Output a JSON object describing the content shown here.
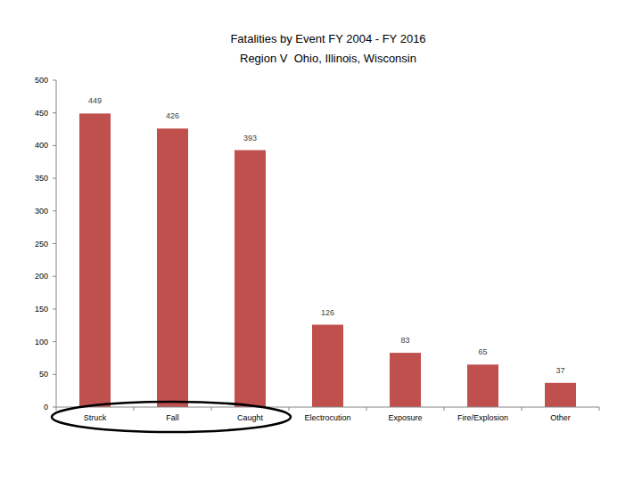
{
  "chart_data": {
    "type": "bar",
    "title": "Fatalities by Event FY 2004 - FY 2016",
    "subtitle": "Region V  Ohio, Illinois, Wisconsin",
    "categories": [
      "Struck",
      "Fall",
      "Caught",
      "Electrocution",
      "Exposure",
      "Fire/Explosion",
      "Other"
    ],
    "values": [
      449,
      426,
      393,
      126,
      83,
      65,
      37
    ],
    "color": "#c0504d",
    "ylim": [
      0,
      500
    ],
    "yticks": [
      0,
      50,
      100,
      150,
      200,
      250,
      300,
      350,
      400,
      450,
      500
    ],
    "grid": false,
    "data_labels": true
  }
}
